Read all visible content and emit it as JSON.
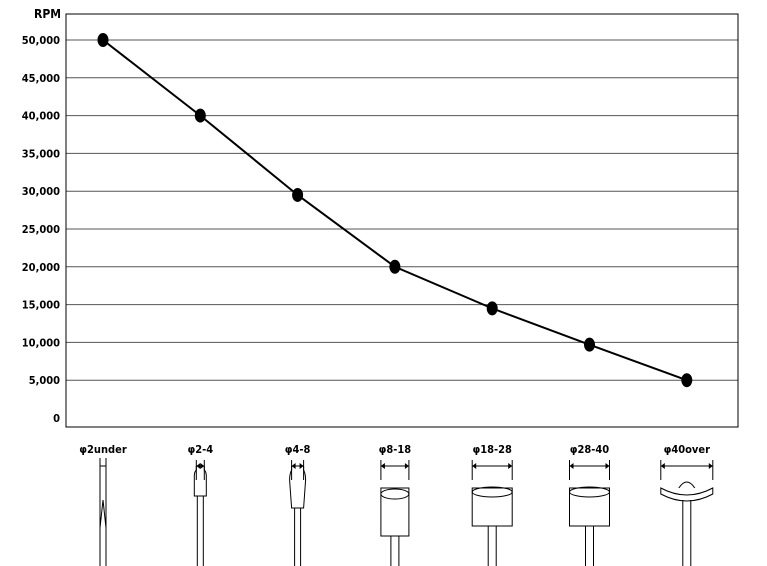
{
  "chart_data": {
    "type": "line",
    "ylabel": "RPM",
    "ylim": [
      0,
      55000
    ],
    "yticks": [
      0,
      5000,
      10000,
      15000,
      20000,
      25000,
      30000,
      35000,
      40000,
      45000,
      50000
    ],
    "ytick_labels": [
      "0",
      "5,000",
      "10,000",
      "15,000",
      "20,000",
      "25,000",
      "30,000",
      "35,000",
      "40,000",
      "45,000",
      "50,000"
    ],
    "grid": true,
    "categories": [
      "φ2under",
      "φ2-4",
      "φ4-8",
      "φ8-18",
      "φ18-28",
      "φ28-40",
      "φ40over"
    ],
    "series": [
      {
        "values": [
          50000,
          40000,
          29500,
          20000,
          14500,
          9700,
          5000
        ]
      }
    ],
    "line_color": "#000000",
    "marker_color": "#000000",
    "category_icons": [
      "thin-pin-icon",
      "small-point-icon",
      "tapered-point-icon",
      "cylinder-icon",
      "wide-cylinder-icon",
      "wide-cylinder-icon",
      "disc-wheel-icon"
    ]
  }
}
